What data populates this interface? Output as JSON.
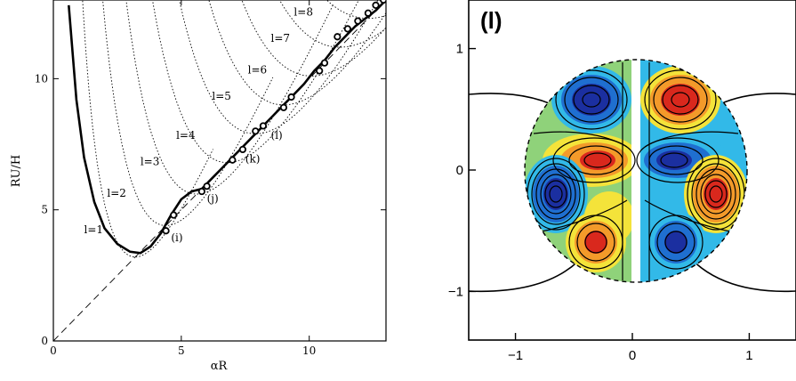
{
  "chart_data": [
    {
      "type": "line",
      "xlabel": "αR",
      "ylabel": "RU/H",
      "xlim": [
        0,
        13
      ],
      "ylim": [
        0,
        13
      ],
      "x_ticks": [
        "0",
        "5",
        "10"
      ],
      "y_ticks": [
        "0",
        "5",
        "10"
      ],
      "mode_labels": [
        {
          "text": "l=1",
          "x": 1.2,
          "y": 4.1
        },
        {
          "text": "l=2",
          "x": 2.1,
          "y": 5.5
        },
        {
          "text": "l=3",
          "x": 3.4,
          "y": 6.7
        },
        {
          "text": "l=4",
          "x": 4.8,
          "y": 7.7
        },
        {
          "text": "l=5",
          "x": 6.2,
          "y": 9.2
        },
        {
          "text": "l=6",
          "x": 7.6,
          "y": 10.2
        },
        {
          "text": "l=7",
          "x": 8.5,
          "y": 11.4
        },
        {
          "text": "l=8",
          "x": 9.4,
          "y": 12.4
        }
      ],
      "annotations": [
        {
          "text": "(i)",
          "x": 4.6,
          "y": 3.8
        },
        {
          "text": "(j)",
          "x": 6.0,
          "y": 5.3
        },
        {
          "text": "(k)",
          "x": 7.5,
          "y": 6.8
        },
        {
          "text": "(l)",
          "x": 8.5,
          "y": 7.7
        }
      ],
      "series": [
        {
          "values_x": [
            0.6,
            0.9,
            1.2,
            1.6,
            2.0,
            2.5,
            3.0,
            3.4,
            3.8,
            4.2,
            4.6,
            5.0,
            5.4,
            5.8,
            6.2,
            6.6,
            7.0,
            7.4,
            7.8,
            8.2,
            8.6,
            9.0,
            9.4,
            9.8,
            10.2,
            10.6,
            11.0,
            11.4,
            11.8,
            12.2,
            12.6,
            13.0
          ],
          "values_y": [
            12.8,
            9.2,
            7.0,
            5.3,
            4.3,
            3.7,
            3.4,
            3.35,
            3.6,
            4.1,
            4.8,
            5.4,
            5.7,
            5.8,
            6.2,
            6.6,
            7.0,
            7.4,
            7.8,
            8.2,
            8.6,
            9.0,
            9.4,
            9.8,
            10.3,
            10.7,
            11.2,
            11.6,
            12.0,
            12.3,
            12.6,
            13.0
          ]
        }
      ],
      "marked_points": {
        "x": [
          4.4,
          4.7,
          5.8,
          6.0,
          7.0,
          7.4,
          7.9,
          8.2,
          9.0,
          9.3,
          10.4,
          10.6,
          11.1,
          11.5,
          11.9,
          12.3,
          12.6,
          12.9
        ],
        "y": [
          4.2,
          4.8,
          5.7,
          5.9,
          6.9,
          7.3,
          8.0,
          8.2,
          8.9,
          9.3,
          10.3,
          10.6,
          11.6,
          11.9,
          12.2,
          12.5,
          12.8,
          13.0
        ]
      },
      "grid": false
    },
    {
      "type": "heatmap",
      "panel_label": "(l)",
      "xlim": [
        -1.4,
        1.4
      ],
      "ylim": [
        -1.4,
        1.4
      ],
      "x_ticks": [
        "−1",
        "0",
        "1"
      ],
      "y_ticks": [
        "−1",
        "0",
        "1"
      ],
      "grid": false
    }
  ]
}
